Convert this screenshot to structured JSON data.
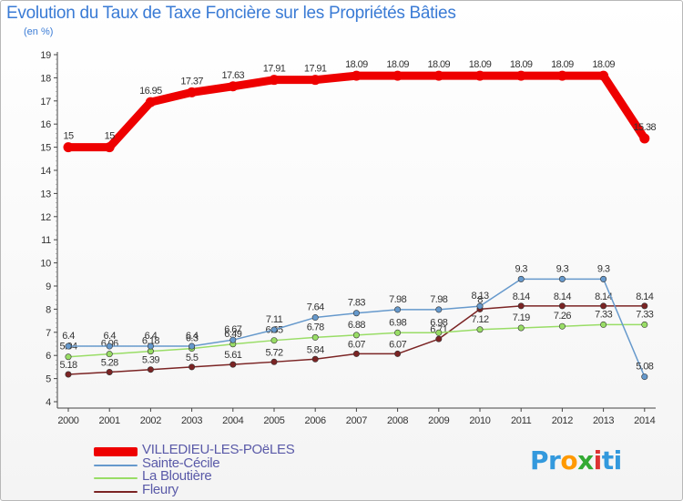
{
  "title": "Evolution du Taux de Taxe Foncière sur les Propriétés Bâties",
  "subtitle": "(en %)",
  "chart_data": {
    "type": "line",
    "title": "Evolution du Taux de Taxe Foncière sur les Propriétés Bâties",
    "ylabel": "(en %)",
    "xlabel": "",
    "ylim": [
      4,
      19
    ],
    "yticks": [
      4,
      5,
      6,
      7,
      8,
      9,
      10,
      11,
      12,
      13,
      14,
      15,
      16,
      17,
      18,
      19
    ],
    "grid": false,
    "legend": "bottom-left",
    "categories": [
      "2000",
      "2001",
      "2002",
      "2003",
      "2004",
      "2005",
      "2006",
      "2007",
      "2008",
      "2009",
      "2010",
      "2011",
      "2012",
      "2013",
      "2014"
    ],
    "series": [
      {
        "name": "VILLEDIEU-LES-POëLES",
        "color": "#ee0000",
        "values": [
          15,
          15,
          16.95,
          17.37,
          17.63,
          17.91,
          17.91,
          18.09,
          18.09,
          18.09,
          18.09,
          18.09,
          18.09,
          18.09,
          15.38
        ],
        "labels": [
          "15",
          "15",
          "16.95",
          "17.37",
          "17.63",
          "17.91",
          "17.91",
          "18.09",
          "18.09",
          "18.09",
          "18.09",
          "18.09",
          "18.09",
          "18.09",
          "15.38"
        ]
      },
      {
        "name": "Sainte-Cécile",
        "color": "#6699cc",
        "values": [
          6.4,
          6.4,
          6.4,
          6.4,
          6.67,
          7.11,
          7.64,
          7.83,
          7.98,
          7.98,
          8.13,
          9.3,
          9.3,
          9.3,
          5.08
        ],
        "labels": [
          "6.4",
          "6.4",
          "6.4",
          "6.4",
          "6.67",
          "7.11",
          "7.64",
          "7.83",
          "7.98",
          "7.98",
          "8.13",
          "9.3",
          "9.3",
          "9.3",
          "5.08"
        ]
      },
      {
        "name": "La Bloutière",
        "color": "#99dd66",
        "values": [
          5.94,
          6.06,
          6.18,
          6.3,
          6.49,
          6.65,
          6.78,
          6.88,
          6.98,
          6.98,
          7.12,
          7.19,
          7.26,
          7.33,
          7.33
        ],
        "labels": [
          "5.94",
          "6.06",
          "6.18",
          "6.3",
          "6.49",
          "6.65",
          "6.78",
          "6.88",
          "6.98",
          "6.98",
          "7.12",
          "7.19",
          "7.26",
          "7.33",
          "7.33"
        ]
      },
      {
        "name": "Fleury",
        "color": "#7b2424",
        "values": [
          5.18,
          5.28,
          5.39,
          5.5,
          5.61,
          5.72,
          5.84,
          6.07,
          6.07,
          6.71,
          8.0,
          8.14,
          8.14,
          8.14,
          8.14
        ],
        "labels": [
          "5.18",
          "5.28",
          "5.39",
          "5.5",
          "5.61",
          "5.72",
          "5.84",
          "6.07",
          "6.07",
          "6.71",
          "8",
          "8.14",
          "8.14",
          "8.14",
          "8.14"
        ]
      }
    ]
  },
  "logo": {
    "text_parts": [
      "Pr",
      "o",
      "x",
      "i",
      "ti"
    ],
    "colors": [
      "#3399dd",
      "#ff9900",
      "#33aa33",
      "#dd3333",
      "#3399dd"
    ]
  }
}
